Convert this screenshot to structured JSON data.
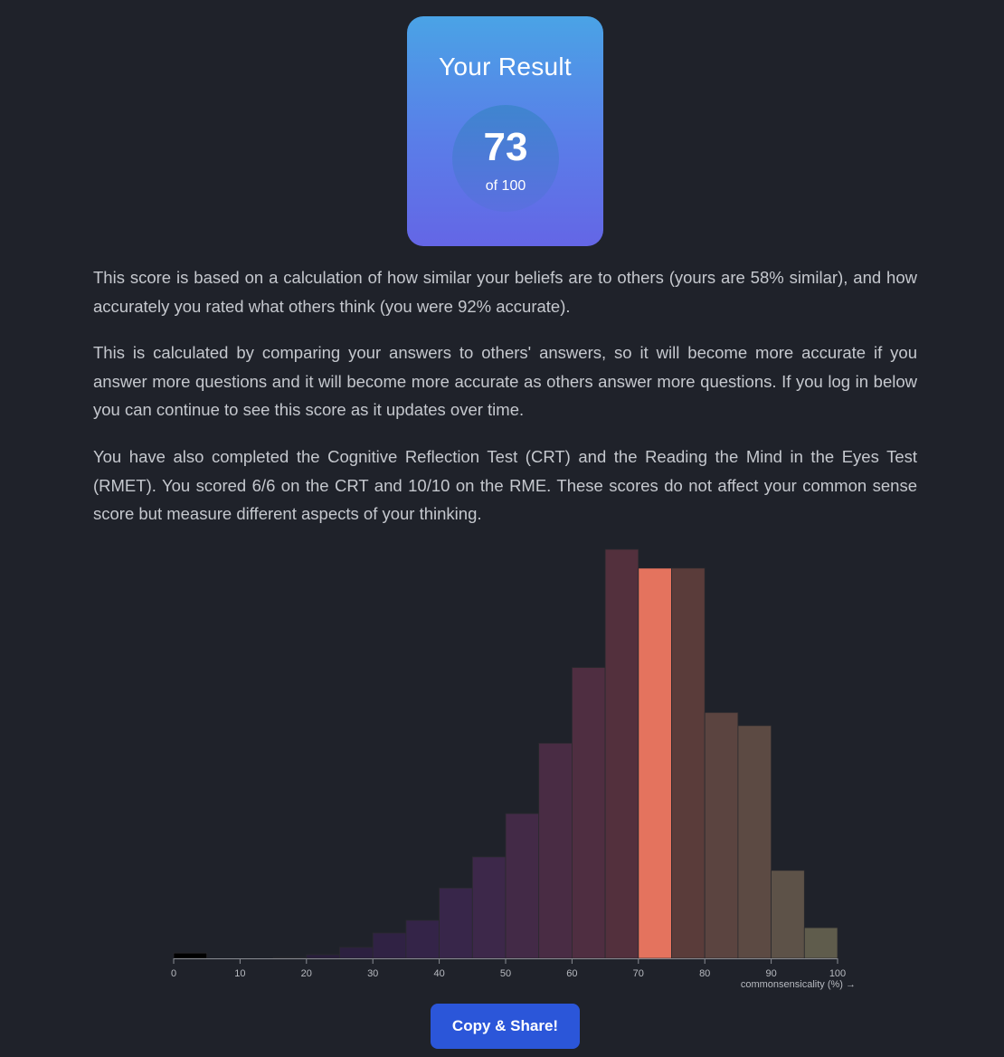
{
  "result": {
    "title": "Your Result",
    "score": "73",
    "score_sub": "of 100"
  },
  "paragraphs": [
    "This score is based on a calculation of how similar your beliefs are to others (yours are 58% similar), and how accurately you rated what others think (you were 92% accurate).",
    "This is calculated by comparing your answers to others' answers, so it will become more accurate if you answer more questions and it will become more accurate as others answer more questions. If you log in below you can continue to see this score as it updates over time.",
    "You have also completed the Cognitive Reflection Test (CRT) and the Reading the Mind in the Eyes Test (RMET). You scored 6/6 on the CRT and 10/10 on the RME. These scores do not affect your common sense score but measure different aspects of your thinking."
  ],
  "share_button": {
    "label": "Copy & Share!"
  },
  "chart_data": {
    "type": "bar",
    "xlabel": "commonsensicality (%) →",
    "ylabel": "",
    "xlim": [
      0,
      100
    ],
    "ylim": [
      0,
      100
    ],
    "x_ticks": [
      0,
      10,
      20,
      30,
      40,
      50,
      60,
      70,
      80,
      90,
      100
    ],
    "bin_width": 5,
    "bins": [
      {
        "start": 0,
        "end": 5,
        "value": 1.3,
        "color": "#000000"
      },
      {
        "start": 5,
        "end": 10,
        "value": 0,
        "color": "#20182b"
      },
      {
        "start": 10,
        "end": 15,
        "value": 0,
        "color": "#221a30"
      },
      {
        "start": 15,
        "end": 20,
        "value": 0.2,
        "color": "#251c36"
      },
      {
        "start": 20,
        "end": 25,
        "value": 0.9,
        "color": "#281e3b"
      },
      {
        "start": 25,
        "end": 30,
        "value": 2.7,
        "color": "#2c2040"
      },
      {
        "start": 30,
        "end": 35,
        "value": 6.2,
        "color": "#302244"
      },
      {
        "start": 35,
        "end": 40,
        "value": 9.3,
        "color": "#342448"
      },
      {
        "start": 40,
        "end": 45,
        "value": 17.2,
        "color": "#38264a"
      },
      {
        "start": 45,
        "end": 50,
        "value": 24.8,
        "color": "#3d284a"
      },
      {
        "start": 50,
        "end": 55,
        "value": 35.4,
        "color": "#432a47"
      },
      {
        "start": 55,
        "end": 60,
        "value": 52.6,
        "color": "#492c44"
      },
      {
        "start": 60,
        "end": 65,
        "value": 71.1,
        "color": "#4f2e41"
      },
      {
        "start": 65,
        "end": 70,
        "value": 100,
        "color": "#53303d"
      },
      {
        "start": 70,
        "end": 75,
        "value": 95.4,
        "color": "#e4735e"
      },
      {
        "start": 75,
        "end": 80,
        "value": 95.4,
        "color": "#5a3c3a"
      },
      {
        "start": 80,
        "end": 85,
        "value": 60.1,
        "color": "#5b4440"
      },
      {
        "start": 85,
        "end": 90,
        "value": 56.9,
        "color": "#5c4a43"
      },
      {
        "start": 90,
        "end": 95,
        "value": 21.5,
        "color": "#5d5248"
      },
      {
        "start": 95,
        "end": 100,
        "value": 7.5,
        "color": "#5f5c4c"
      }
    ],
    "highlight_bin": "70-75",
    "grid": false,
    "colors": {
      "axis": "#8a8d94",
      "tick_label": "#b7bac0",
      "bar_stroke": "#2a2a2e"
    }
  }
}
